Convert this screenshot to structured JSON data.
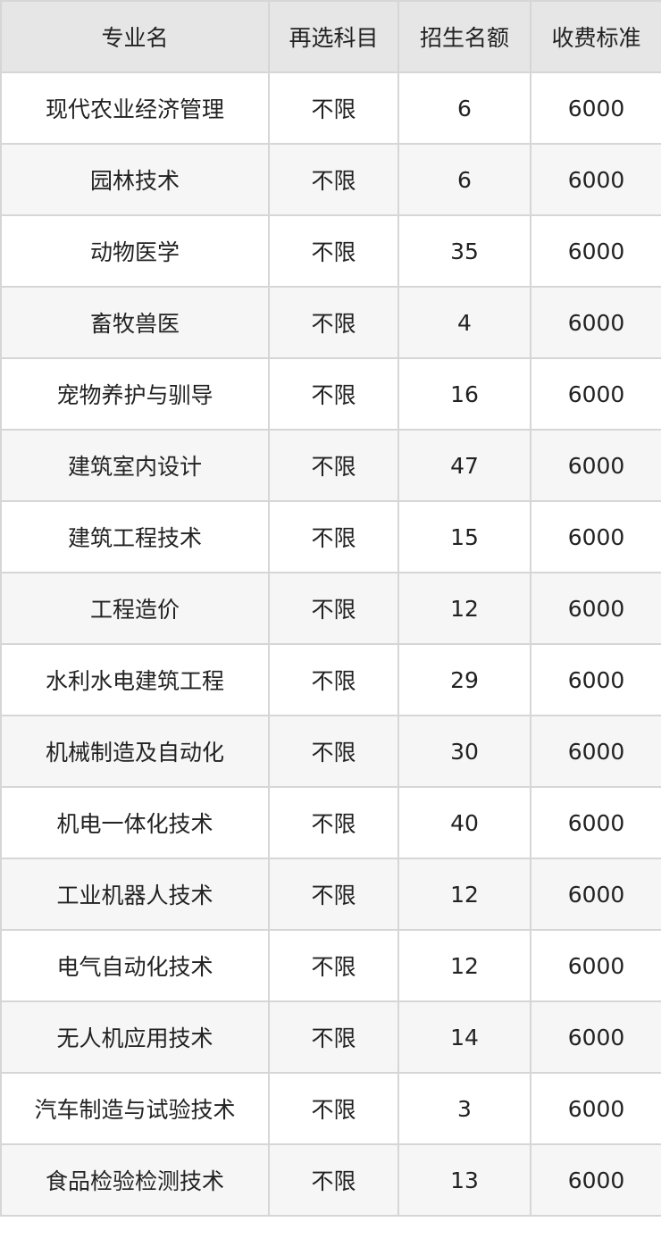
{
  "table": {
    "headers": [
      "专业名",
      "再选科目",
      "招生名额",
      "收费标准"
    ],
    "rows": [
      [
        "现代农业经济管理",
        "不限",
        "6",
        "6000"
      ],
      [
        "园林技术",
        "不限",
        "6",
        "6000"
      ],
      [
        "动物医学",
        "不限",
        "35",
        "6000"
      ],
      [
        "畜牧兽医",
        "不限",
        "4",
        "6000"
      ],
      [
        "宠物养护与驯导",
        "不限",
        "16",
        "6000"
      ],
      [
        "建筑室内设计",
        "不限",
        "47",
        "6000"
      ],
      [
        "建筑工程技术",
        "不限",
        "15",
        "6000"
      ],
      [
        "工程造价",
        "不限",
        "12",
        "6000"
      ],
      [
        "水利水电建筑工程",
        "不限",
        "29",
        "6000"
      ],
      [
        "机械制造及自动化",
        "不限",
        "30",
        "6000"
      ],
      [
        "机电一体化技术",
        "不限",
        "40",
        "6000"
      ],
      [
        "工业机器人技术",
        "不限",
        "12",
        "6000"
      ],
      [
        "电气自动化技术",
        "不限",
        "12",
        "6000"
      ],
      [
        "无人机应用技术",
        "不限",
        "14",
        "6000"
      ],
      [
        "汽车制造与试验技术",
        "不限",
        "3",
        "6000"
      ],
      [
        "食品检验检测技术",
        "不限",
        "13",
        "6000"
      ]
    ]
  }
}
